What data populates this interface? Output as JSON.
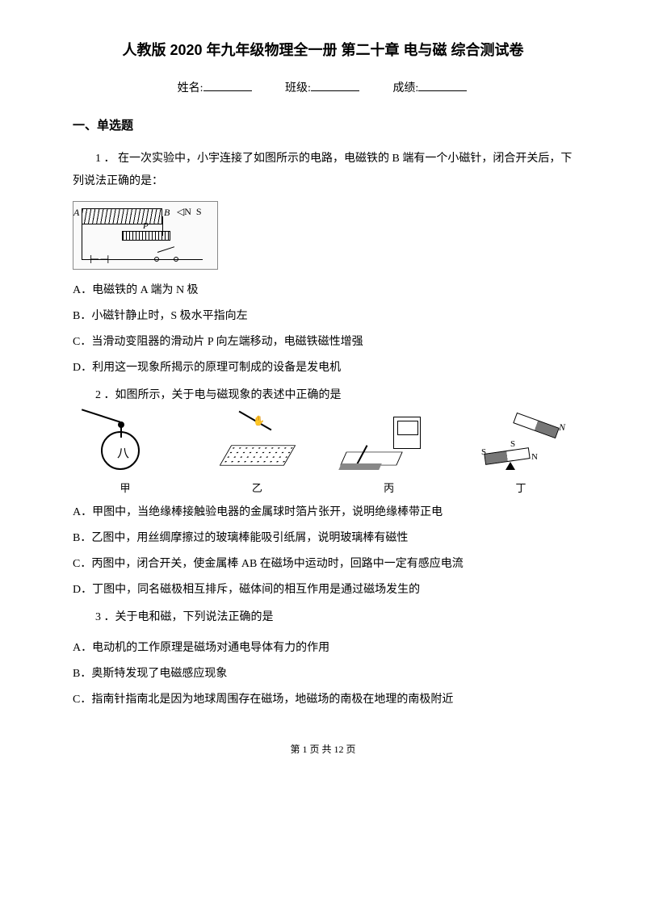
{
  "title": "人教版 2020 年九年级物理全一册  第二十章  电与磁  综合测试卷",
  "info": {
    "name_label": "姓名:",
    "class_label": "班级:",
    "score_label": "成绩:"
  },
  "section1": "一、单选题",
  "q1": {
    "stem": "1 ．  在一次实验中，小宇连接了如图所示的电路，电磁铁的 B 端有一个小磁针，闭合开关后，下列说法正确的是：",
    "fig": {
      "A": "A",
      "B": "B",
      "N": "N",
      "S": "S",
      "P": "P"
    },
    "A": "A．电磁铁的 A 端为 N 极",
    "B": "B．小磁针静止时，S 极水平指向左",
    "C": "C．当滑动变阻器的滑动片 P 向左端移动，电磁铁磁性增强",
    "D": "D．利用这一现象所揭示的原理可制成的设备是发电机"
  },
  "q2": {
    "stem": "2 ．如图所示，关于电与磁现象的表述中正确的是",
    "labels": {
      "jia": "甲",
      "yi": "乙",
      "bing": "丙",
      "ding": "丁"
    },
    "A": "A．甲图中，当绝缘棒接触验电器的金属球时箔片张开，说明绝缘棒带正电",
    "B": "B．乙图中，用丝绸摩擦过的玻璃棒能吸引纸屑，说明玻璃棒有磁性",
    "C": "C．丙图中，闭合开关，使金属棒 AB 在磁场中运动时，回路中一定有感应电流",
    "D": "D．丁图中，同名磁极相互排斥，磁体间的相互作用是通过磁场发生的"
  },
  "q3": {
    "stem": "3 ．关于电和磁，下列说法正确的是",
    "A": "A．电动机的工作原理是磁场对通电导体有力的作用",
    "B": "B．奥斯特发现了电磁感应现象",
    "C": "C．指南针指南北是因为地球周围存在磁场，地磁场的南极在地理的南极附近"
  },
  "footer": {
    "prefix": "第 ",
    "page": "1",
    "mid": " 页 共 ",
    "total": "12",
    "suffix": " 页"
  }
}
